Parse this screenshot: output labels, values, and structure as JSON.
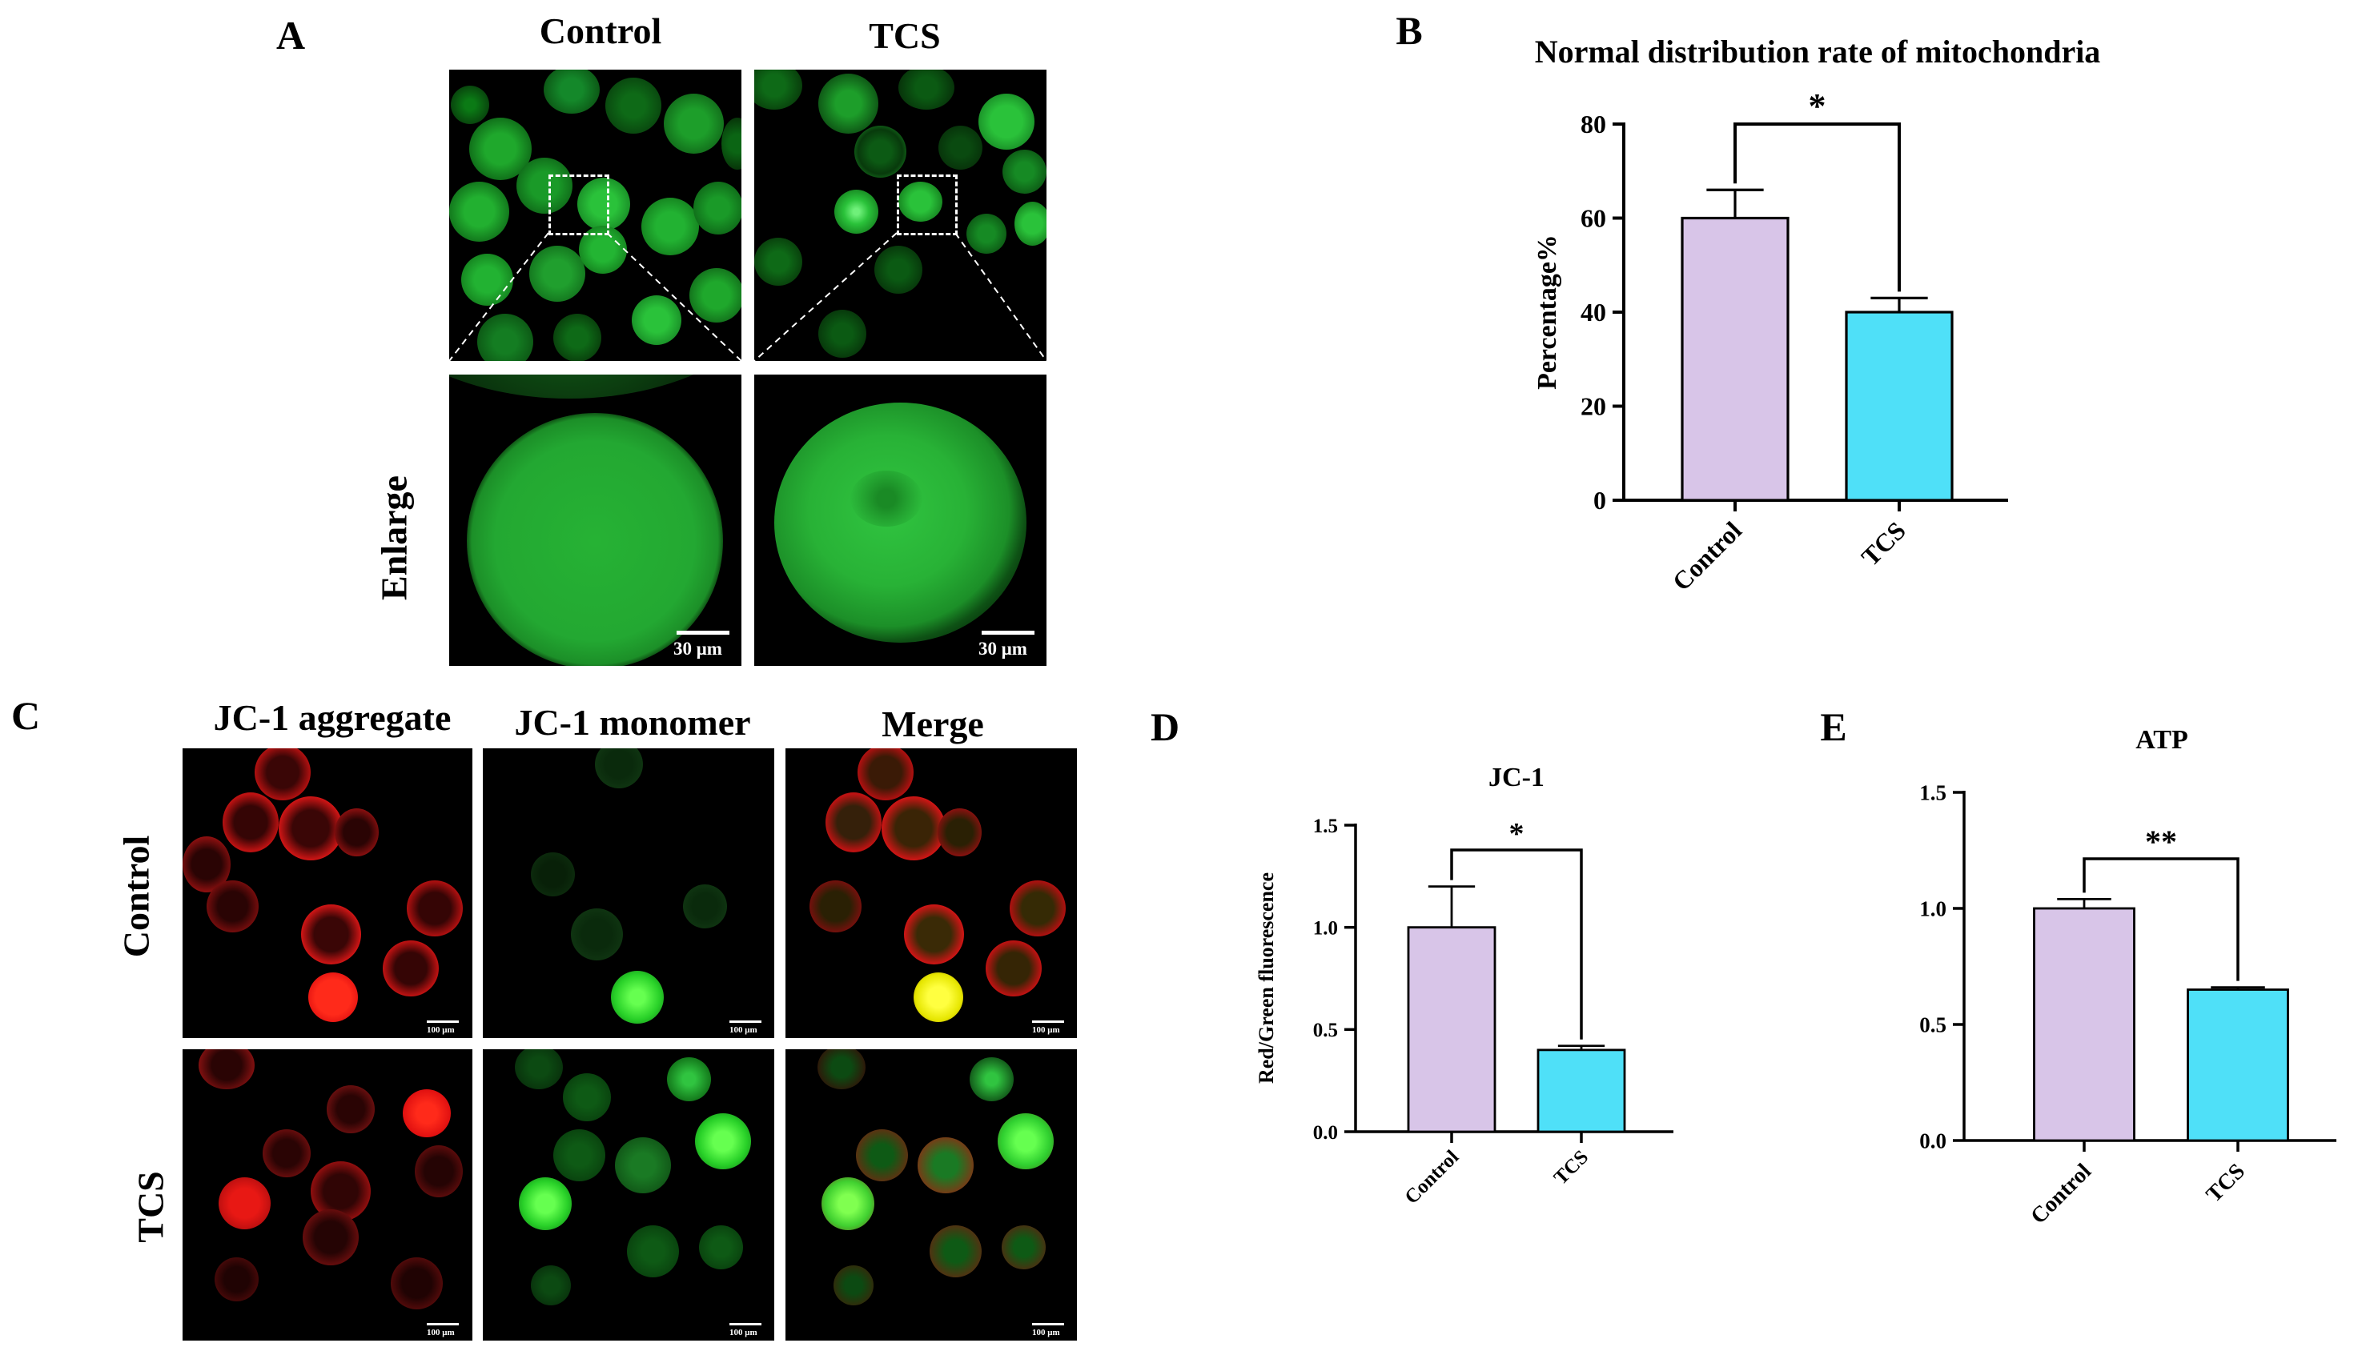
{
  "panel_a": {
    "letter": "A",
    "col_titles": [
      "Control",
      "TCS"
    ],
    "row_label": "Enlarge",
    "scale_label": "30 μm"
  },
  "panel_c": {
    "letter": "C",
    "col_titles": [
      "JC-1 aggregate",
      "JC-1 monomer",
      "Merge"
    ],
    "row_labels": [
      "Control",
      "TCS"
    ],
    "scale_label": "100 μm"
  },
  "colors": {
    "control_bar": "#d8c5e8",
    "tcs_bar": "#4fe0f8",
    "cell_green": "#22c432",
    "cell_red": "#e01010",
    "merge_yellow": "#e6e600"
  },
  "chart_data": [
    {
      "panel": "B",
      "type": "bar",
      "title": "Normal distribution rate of mitochondria",
      "xlabel": "",
      "ylabel": "Percentage%",
      "categories": [
        "Control",
        "TCS"
      ],
      "values": [
        60,
        40
      ],
      "errors": [
        6,
        3
      ],
      "ylim": [
        0,
        80
      ],
      "yticks": [
        0,
        20,
        40,
        60,
        80
      ],
      "ytick_labels": [
        "0",
        "20",
        "40",
        "60",
        "80"
      ],
      "significance": "*",
      "bar_colors": [
        "#d8c5e8",
        "#4fe0f8"
      ]
    },
    {
      "panel": "D",
      "type": "bar",
      "title": "JC-1",
      "xlabel": "",
      "ylabel": "Red/Green fluorescence",
      "categories": [
        "Control",
        "TCS"
      ],
      "values": [
        1.0,
        0.4
      ],
      "errors": [
        0.2,
        0.02
      ],
      "ylim": [
        0,
        1.5
      ],
      "yticks": [
        0,
        0.5,
        1.0,
        1.5
      ],
      "ytick_labels": [
        "0.0",
        "0.5",
        "1.0",
        "1.5"
      ],
      "significance": "*",
      "bar_colors": [
        "#d8c5e8",
        "#4fe0f8"
      ]
    },
    {
      "panel": "E",
      "type": "bar",
      "title": "ATP",
      "xlabel": "",
      "ylabel": "",
      "categories": [
        "Control",
        "TCS"
      ],
      "values": [
        1.0,
        0.65
      ],
      "errors": [
        0.04,
        0.01
      ],
      "ylim": [
        0,
        1.5
      ],
      "yticks": [
        0,
        0.5,
        1.0,
        1.5
      ],
      "ytick_labels": [
        "0.0",
        "0.5",
        "1.0",
        "1.5"
      ],
      "significance": "**",
      "bar_colors": [
        "#d8c5e8",
        "#4fe0f8"
      ]
    }
  ]
}
